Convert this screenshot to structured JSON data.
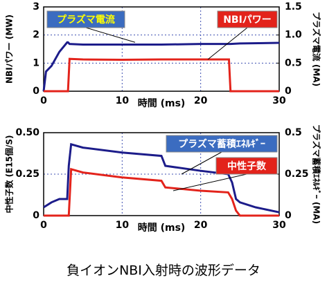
{
  "chart_data": [
    {
      "type": "line",
      "x_label": "時間 (ms)",
      "y_label": "NBIパワー (MW)",
      "y2_label": "プラズマ電流 (MA)",
      "x": [
        0,
        0.3,
        1,
        2,
        3,
        3.1,
        3.3,
        5,
        10,
        15,
        20,
        23.6,
        23.8,
        25,
        30
      ],
      "xlim": [
        0,
        30
      ],
      "xticks": [
        0,
        10,
        20,
        30
      ],
      "ylim": [
        0,
        3
      ],
      "yticks": [
        0,
        1,
        2,
        3
      ],
      "y2lim": [
        0,
        1.5
      ],
      "y2ticks": [
        0,
        0.5,
        {
          "value": 1,
          "label": "1.0"
        },
        1.5
      ],
      "grid": true,
      "series": [
        {
          "name": "プラズマ電流",
          "color": "#1c1c8a",
          "axis": "y2",
          "label_fill": "#3b6cc0",
          "label_text_color": "#ffff00",
          "values": [
            0,
            0.35,
            0.45,
            0.7,
            0.87,
            0.87,
            0.84,
            0.83,
            0.83,
            0.83,
            0.84,
            0.84,
            0.84,
            0.85,
            0.86
          ]
        },
        {
          "name": "NBIパワー",
          "color": "#e3231b",
          "label_fill": "#e3231b",
          "label_text_color": "#ffffff",
          "values": [
            0,
            0,
            0,
            0,
            0,
            0,
            1.15,
            1.13,
            1.12,
            1.13,
            1.13,
            1.13,
            0,
            0,
            0
          ]
        }
      ]
    },
    {
      "type": "line",
      "x_label": "時間 (ms)",
      "y_label": "中性子数 (E15個/S)",
      "y2_label": "プラズマ蓄積ｴﾈﾙｷﾞｰ (MA)",
      "x": [
        0,
        1,
        2,
        3,
        3.2,
        3.5,
        5,
        10,
        15,
        15.5,
        20,
        23.5,
        24,
        24.5,
        25,
        27,
        30
      ],
      "xlim": [
        0,
        30
      ],
      "xticks": [
        0,
        10,
        20,
        30
      ],
      "ylim": [
        0,
        0.5
      ],
      "yticks": [
        0,
        0.25,
        {
          "value": 0.5,
          "label": "0.50"
        }
      ],
      "y2lim": [
        0,
        0.5
      ],
      "y2ticks": [
        0,
        0.25,
        0.5
      ],
      "grid": true,
      "series": [
        {
          "name": "プラズマ蓄積ｴﾈﾙｷﾞｰ",
          "color": "#1c1c8a",
          "axis": "y2",
          "label_fill": "#3b6cc0",
          "label_text_color": "#ffffff",
          "values": [
            0.05,
            0.08,
            0.1,
            0.1,
            0.3,
            0.43,
            0.41,
            0.38,
            0.36,
            0.3,
            0.27,
            0.25,
            0.2,
            0.1,
            0.08,
            0.05,
            0.02
          ]
        },
        {
          "name": "中性子数",
          "color": "#e3231b",
          "label_fill": "#e3231b",
          "label_text_color": "#ffffff",
          "values": [
            0,
            0,
            0,
            0,
            0,
            0.28,
            0.26,
            0.23,
            0.21,
            0.17,
            0.15,
            0.14,
            0.1,
            0.03,
            0,
            0,
            0
          ]
        }
      ]
    }
  ],
  "caption": "負イオンNBI入射時の波形データ"
}
